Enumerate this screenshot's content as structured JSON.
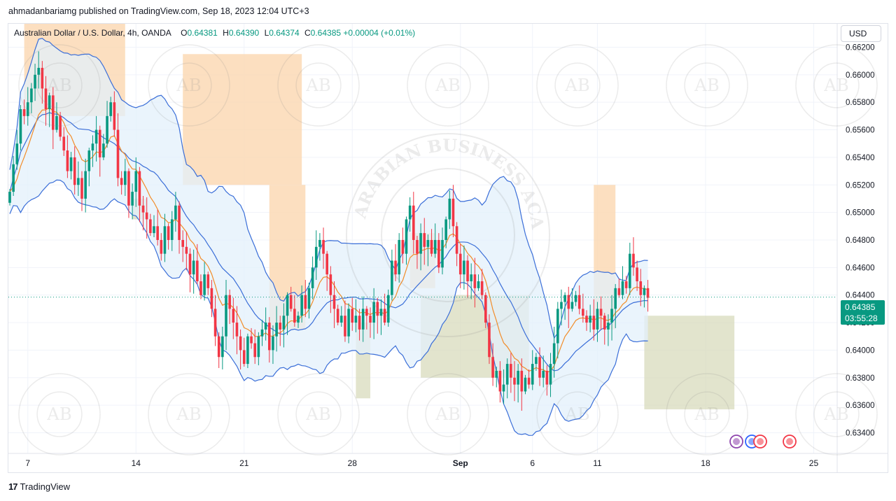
{
  "header": {
    "publisher_line": "ahmadanbariamg published on TradingView.com, Sep 18, 2023 12:04 UTC+3"
  },
  "legend": {
    "symbol": "Australian Dollar / U.S. Dollar, 4h, OANDA",
    "open_label": "O",
    "open": "0.64381",
    "high_label": "H",
    "high": "0.64390",
    "low_label": "L",
    "low": "0.64374",
    "close_label": "C",
    "close": "0.64385",
    "change": "+0.00004 (+0.01%)"
  },
  "currency_button": "USD",
  "price_label": {
    "price": "0.64385",
    "countdown": "03:55:28"
  },
  "footer": {
    "brand": "TradingView",
    "logo_glyph": "17"
  },
  "watermark": {
    "ring_text": "ARABIAN BUSINESS ACADEMY",
    "monogram": "AB"
  },
  "colors": {
    "up": "#089981",
    "down": "#f23645",
    "bollinger": "#3a6ed8",
    "ema": "#f28c28",
    "supply_zone": "#fbd7b0",
    "demand_zone": "#d6d8b8",
    "band_fill": "#e3f0fb"
  },
  "chart_data": {
    "type": "candlestick",
    "symbol": "AUDUSD",
    "timeframe": "4h",
    "y_ticks": [
      "0.66200",
      "0.66000",
      "0.65800",
      "0.65600",
      "0.65400",
      "0.65200",
      "0.65000",
      "0.64800",
      "0.64600",
      "0.64400",
      "0.64200",
      "0.64000",
      "0.63800",
      "0.63600",
      "0.63400"
    ],
    "ylim": [
      0.6325,
      0.6637
    ],
    "x_ticks": [
      {
        "label": "7",
        "idx": 5
      },
      {
        "label": "14",
        "idx": 35
      },
      {
        "label": "21",
        "idx": 65
      },
      {
        "label": "28",
        "idx": 95
      },
      {
        "label": "Sep",
        "idx": 125,
        "bold": true
      },
      {
        "label": "6",
        "idx": 145
      },
      {
        "label": "11",
        "idx": 163
      },
      {
        "label": "18",
        "idx": 193
      },
      {
        "label": "25",
        "idx": 223
      }
    ],
    "last_price": 0.64385,
    "ohlc_pattern": [
      0.6515,
      0.6535,
      0.655,
      0.6575,
      0.657,
      0.658,
      0.659,
      0.66,
      0.6605,
      0.659,
      0.6575,
      0.6585,
      0.656,
      0.657,
      0.6555,
      0.6545,
      0.653,
      0.654,
      0.652,
      0.6525,
      0.651,
      0.653,
      0.6545,
      0.655,
      0.656,
      0.654,
      0.655,
      0.657,
      0.658,
      0.656,
      0.6525,
      0.652,
      0.653,
      0.6505,
      0.6515,
      0.653,
      0.6505,
      0.65,
      0.6495,
      0.6485,
      0.649,
      0.648,
      0.647,
      0.649,
      0.648,
      0.6495,
      0.6505,
      0.648,
      0.6475,
      0.647,
      0.6455,
      0.6465,
      0.645,
      0.644,
      0.6455,
      0.6445,
      0.643,
      0.641,
      0.6395,
      0.641,
      0.644,
      0.643,
      0.642,
      0.641,
      0.64,
      0.639,
      0.641,
      0.6405,
      0.6395,
      0.641,
      0.6415,
      0.642,
      0.64,
      0.641,
      0.642,
      0.6415,
      0.6425,
      0.644,
      0.643,
      0.642,
      0.6425,
      0.644,
      0.643,
      0.6445,
      0.646,
      0.6475,
      0.648,
      0.647,
      0.6455,
      0.644,
      0.643,
      0.642,
      0.6425,
      0.641,
      0.643,
      0.642,
      0.6425,
      0.6415,
      0.643,
      0.6425,
      0.642,
      0.6435,
      0.6425,
      0.643,
      0.642,
      0.644,
      0.6465,
      0.6455,
      0.648,
      0.647,
      0.6495,
      0.6505,
      0.648,
      0.647,
      0.6485,
      0.6475,
      0.648,
      0.647,
      0.648,
      0.646,
      0.648,
      0.6495,
      0.651,
      0.649,
      0.647,
      0.6455,
      0.6465,
      0.645,
      0.6455,
      0.6445,
      0.645,
      0.644,
      0.642,
      0.6395,
      0.638,
      0.6385,
      0.637,
      0.6375,
      0.639,
      0.638,
      0.6375,
      0.6385,
      0.637,
      0.638,
      0.6375,
      0.639,
      0.6395,
      0.638,
      0.6385,
      0.6375,
      0.639,
      0.6405,
      0.643,
      0.6435,
      0.644,
      0.643,
      0.6435,
      0.644,
      0.643,
      0.6425,
      0.642,
      0.6425,
      0.6415,
      0.643,
      0.6425,
      0.6415,
      0.642,
      0.643,
      0.6445,
      0.644,
      0.645,
      0.6445,
      0.647,
      0.646,
      0.645,
      0.644,
      0.6445,
      0.6438
    ]
  }
}
